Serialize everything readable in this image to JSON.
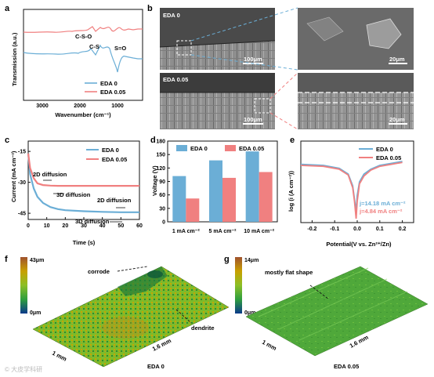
{
  "panels": {
    "a": {
      "label": "a",
      "ylabel": "Transmission (a.u.)",
      "xlabel": "Wavenumber (cm⁻¹)",
      "xticks": [
        "3000",
        "2000",
        "1000"
      ],
      "annotations": {
        "cso": "C-S-O",
        "cs": "C-S",
        "so": "S=O"
      },
      "legend": [
        "EDA 0",
        "EDA 0.05"
      ]
    },
    "b": {
      "label": "b",
      "img1_label": "EDA 0",
      "img2_label": "EDA 0.05",
      "scale_big": "100μm",
      "scale_small": "20μm"
    },
    "c": {
      "label": "c",
      "ylabel": "Current (mA cm⁻²)",
      "xlabel": "Time (s)",
      "yticks": [
        "-15",
        "-30",
        "-45"
      ],
      "xticks": [
        "0",
        "10",
        "20",
        "30",
        "40",
        "50",
        "60"
      ],
      "legend": [
        "EDA 0",
        "EDA 0.05"
      ],
      "annotations": {
        "d2a": "2D diffusion",
        "d3a": "3D diffusion",
        "d2b": "2D diffusion",
        "d3b": "3D diffusion"
      }
    },
    "d": {
      "label": "d",
      "ylabel": "Voltage (V)",
      "yticks": [
        "0",
        "30",
        "60",
        "90",
        "120",
        "150",
        "180"
      ],
      "legend": [
        "EDA 0",
        "EDA 0.05"
      ]
    },
    "e": {
      "label": "e",
      "ylabel": "log (i (A cm⁻²))",
      "xlabel": "Potential(V vs. Zn²⁺/Zn)",
      "xticks": [
        "-0.2",
        "-0.1",
        "0.0",
        "0.1",
        "0.2"
      ],
      "legend": [
        "EDA 0",
        "EDA 0.05"
      ],
      "j1": "j=14.18 mA cm⁻²",
      "j2": "j=4.84 mA cm⁻²"
    },
    "f": {
      "label": "f",
      "zmax": "43μm",
      "zmin": "0μm",
      "corrode": "corrode",
      "dendrite": "dendrite",
      "dim1": "1 mm",
      "dim2": "1.6 mm",
      "caption": "EDA 0"
    },
    "g": {
      "label": "g",
      "zmax": "14μm",
      "zmin": "0μm",
      "note": "mostly flat shape",
      "dim1": "1 mm",
      "dim2": "1.6 mm",
      "caption": "EDA 0.05"
    }
  },
  "colors": {
    "eda0": "#6baed6",
    "eda005": "#f08080"
  },
  "watermark": "© 大皮学科研",
  "chart_data": [
    {
      "type": "bar",
      "panel": "d",
      "categories": [
        "1 mA cm⁻²",
        "5 mA cm⁻²",
        "10 mA cm⁻²"
      ],
      "series": [
        {
          "name": "EDA 0",
          "values": [
            102,
            137,
            157
          ]
        },
        {
          "name": "EDA 0.05",
          "values": [
            52,
            98,
            111
          ]
        }
      ],
      "ylabel": "Voltage (V)",
      "ylim": [
        0,
        180
      ]
    },
    {
      "type": "line",
      "panel": "c",
      "series": [
        {
          "name": "EDA 0",
          "x": [
            0,
            1,
            3,
            5,
            8,
            12,
            16,
            20,
            30,
            40,
            50,
            60
          ],
          "y": [
            -16,
            -26,
            -33,
            -37,
            -40,
            -42,
            -43,
            -43.5,
            -44,
            -44.3,
            -44.5,
            -44.5
          ]
        },
        {
          "name": "EDA 0.05",
          "x": [
            0,
            1,
            3,
            5,
            8,
            12,
            16,
            20,
            30,
            40,
            50,
            60
          ],
          "y": [
            -16,
            -23,
            -28,
            -30.5,
            -31.3,
            -31.6,
            -31.7,
            -31.7,
            -31.7,
            -31.7,
            -31.7,
            -31.7
          ]
        }
      ],
      "xlim": [
        0,
        60
      ],
      "ylim": [
        -48,
        -10
      ]
    },
    {
      "type": "line",
      "panel": "e",
      "series": [
        {
          "name": "EDA 0",
          "x": [
            -0.25,
            -0.15,
            -0.08,
            -0.04,
            -0.02,
            -0.012,
            -0.005,
            0.0,
            0.01,
            0.03,
            0.06,
            0.1,
            0.15,
            0.2
          ],
          "y": [
            -2.0,
            -2.05,
            -2.2,
            -2.5,
            -3.1,
            -3.8,
            -4.4,
            -3.6,
            -2.9,
            -2.5,
            -2.25,
            -2.05,
            -1.95,
            -1.85
          ]
        },
        {
          "name": "EDA 0.05",
          "x": [
            -0.25,
            -0.15,
            -0.08,
            -0.04,
            -0.02,
            -0.012,
            -0.005,
            0.0,
            0.01,
            0.03,
            0.06,
            0.1,
            0.15,
            0.2
          ],
          "y": [
            -2.05,
            -2.1,
            -2.25,
            -2.55,
            -3.2,
            -3.9,
            -4.8,
            -3.9,
            -3.0,
            -2.6,
            -2.3,
            -2.1,
            -2.0,
            -1.9
          ]
        }
      ],
      "xlim": [
        -0.25,
        0.25
      ]
    }
  ]
}
